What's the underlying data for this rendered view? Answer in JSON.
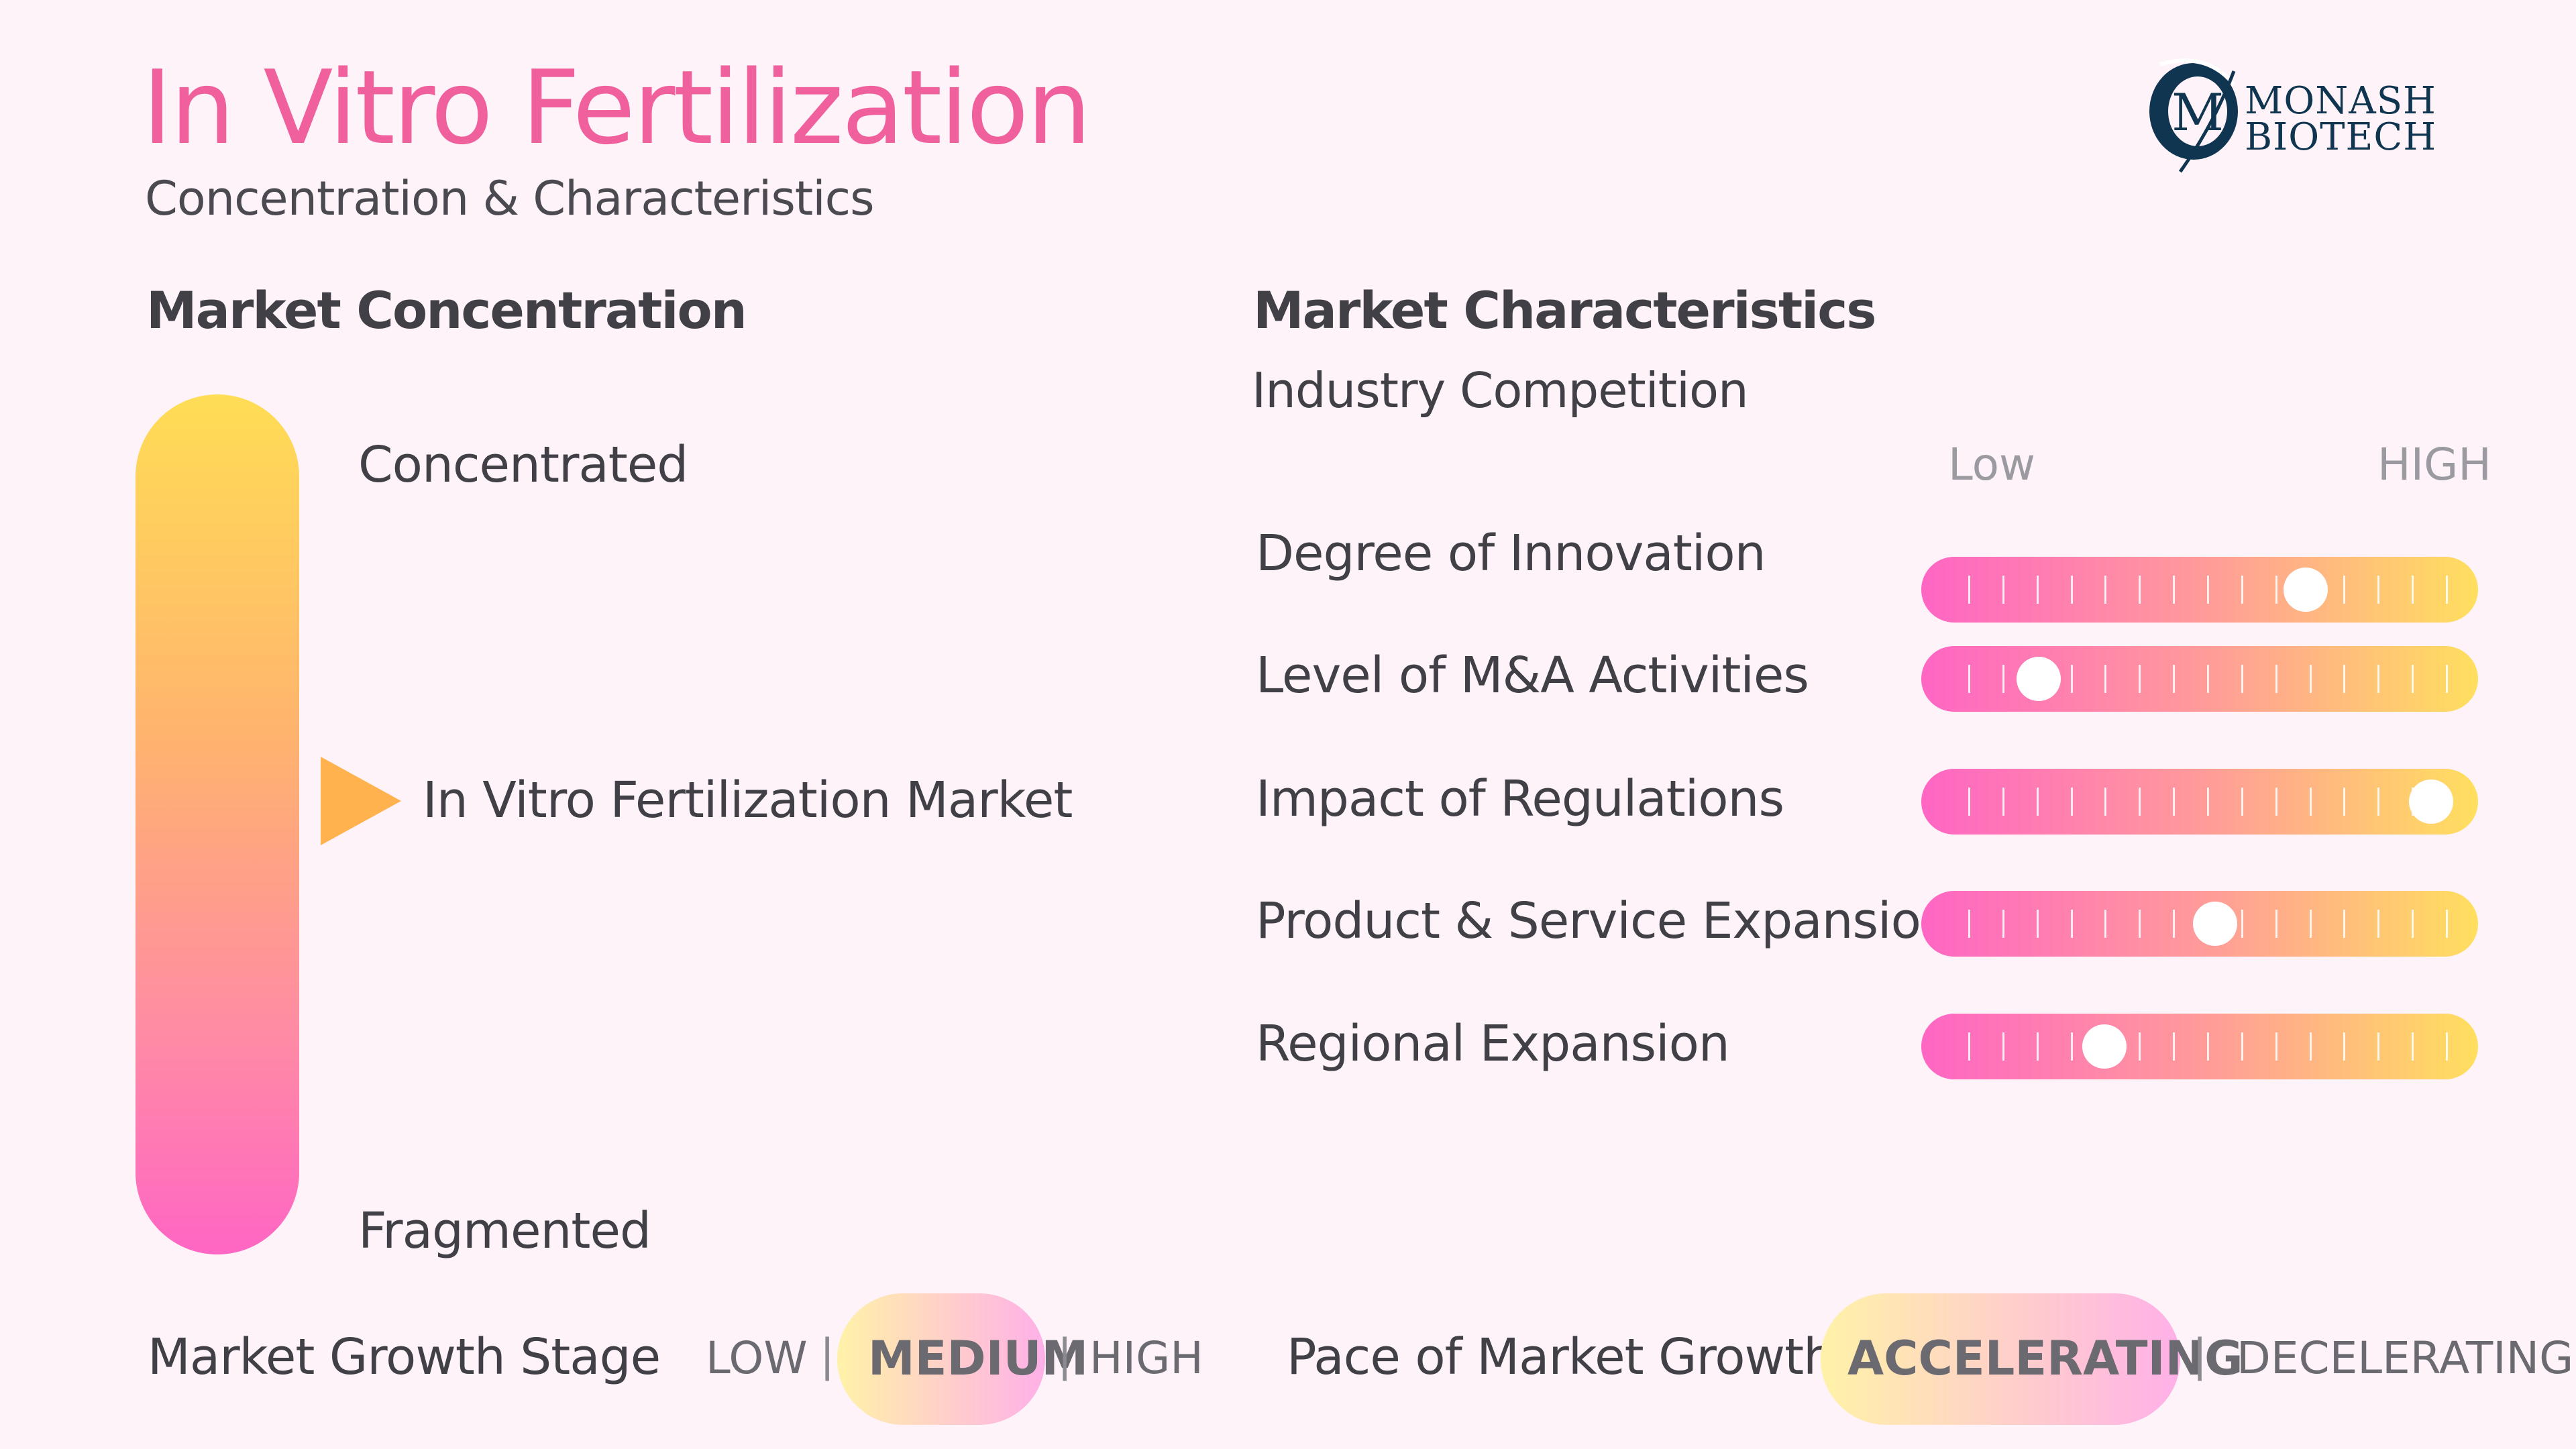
{
  "header": {
    "title": "In Vitro Fertilization",
    "subtitle": "Concentration & Characteristics"
  },
  "logo": {
    "line1": "MONASH",
    "line2": "BIOTECH",
    "monogram": "M"
  },
  "market_concentration": {
    "title": "Market Concentration",
    "top_label": "Concentrated",
    "bottom_label": "Fragmented",
    "marker_label": "In Vitro Fertilization Market",
    "marker_level": 0.48,
    "colors": {
      "top": "#ffdd55",
      "bottom": "#ff66c4",
      "marker": "#ffb24d"
    }
  },
  "market_characteristics": {
    "title": "Market Characteristics",
    "subtitle": "Industry  Competition",
    "scale_low": "Low",
    "scale_high": "HIGH",
    "rows": [
      {
        "label": "Degree of Innovation",
        "value": 0.71
      },
      {
        "label": "Level  of M&A  Activities",
        "value": 0.18
      },
      {
        "label": "Impact of Regulations",
        "value": 0.96
      },
      {
        "label": "Product  & Service Expansion",
        "value": 0.53
      },
      {
        "label": "Regional Expansion",
        "value": 0.31
      }
    ]
  },
  "growth_stage": {
    "label": "Market  Growth Stage",
    "options": [
      "LOW",
      "MEDIUM",
      "HIGH"
    ],
    "selected": "MEDIUM"
  },
  "growth_pace": {
    "label": "Pace of Market  Growth",
    "options": [
      "ACCELERATING",
      "DECELERATING"
    ],
    "selected": "ACCELERATING"
  }
}
